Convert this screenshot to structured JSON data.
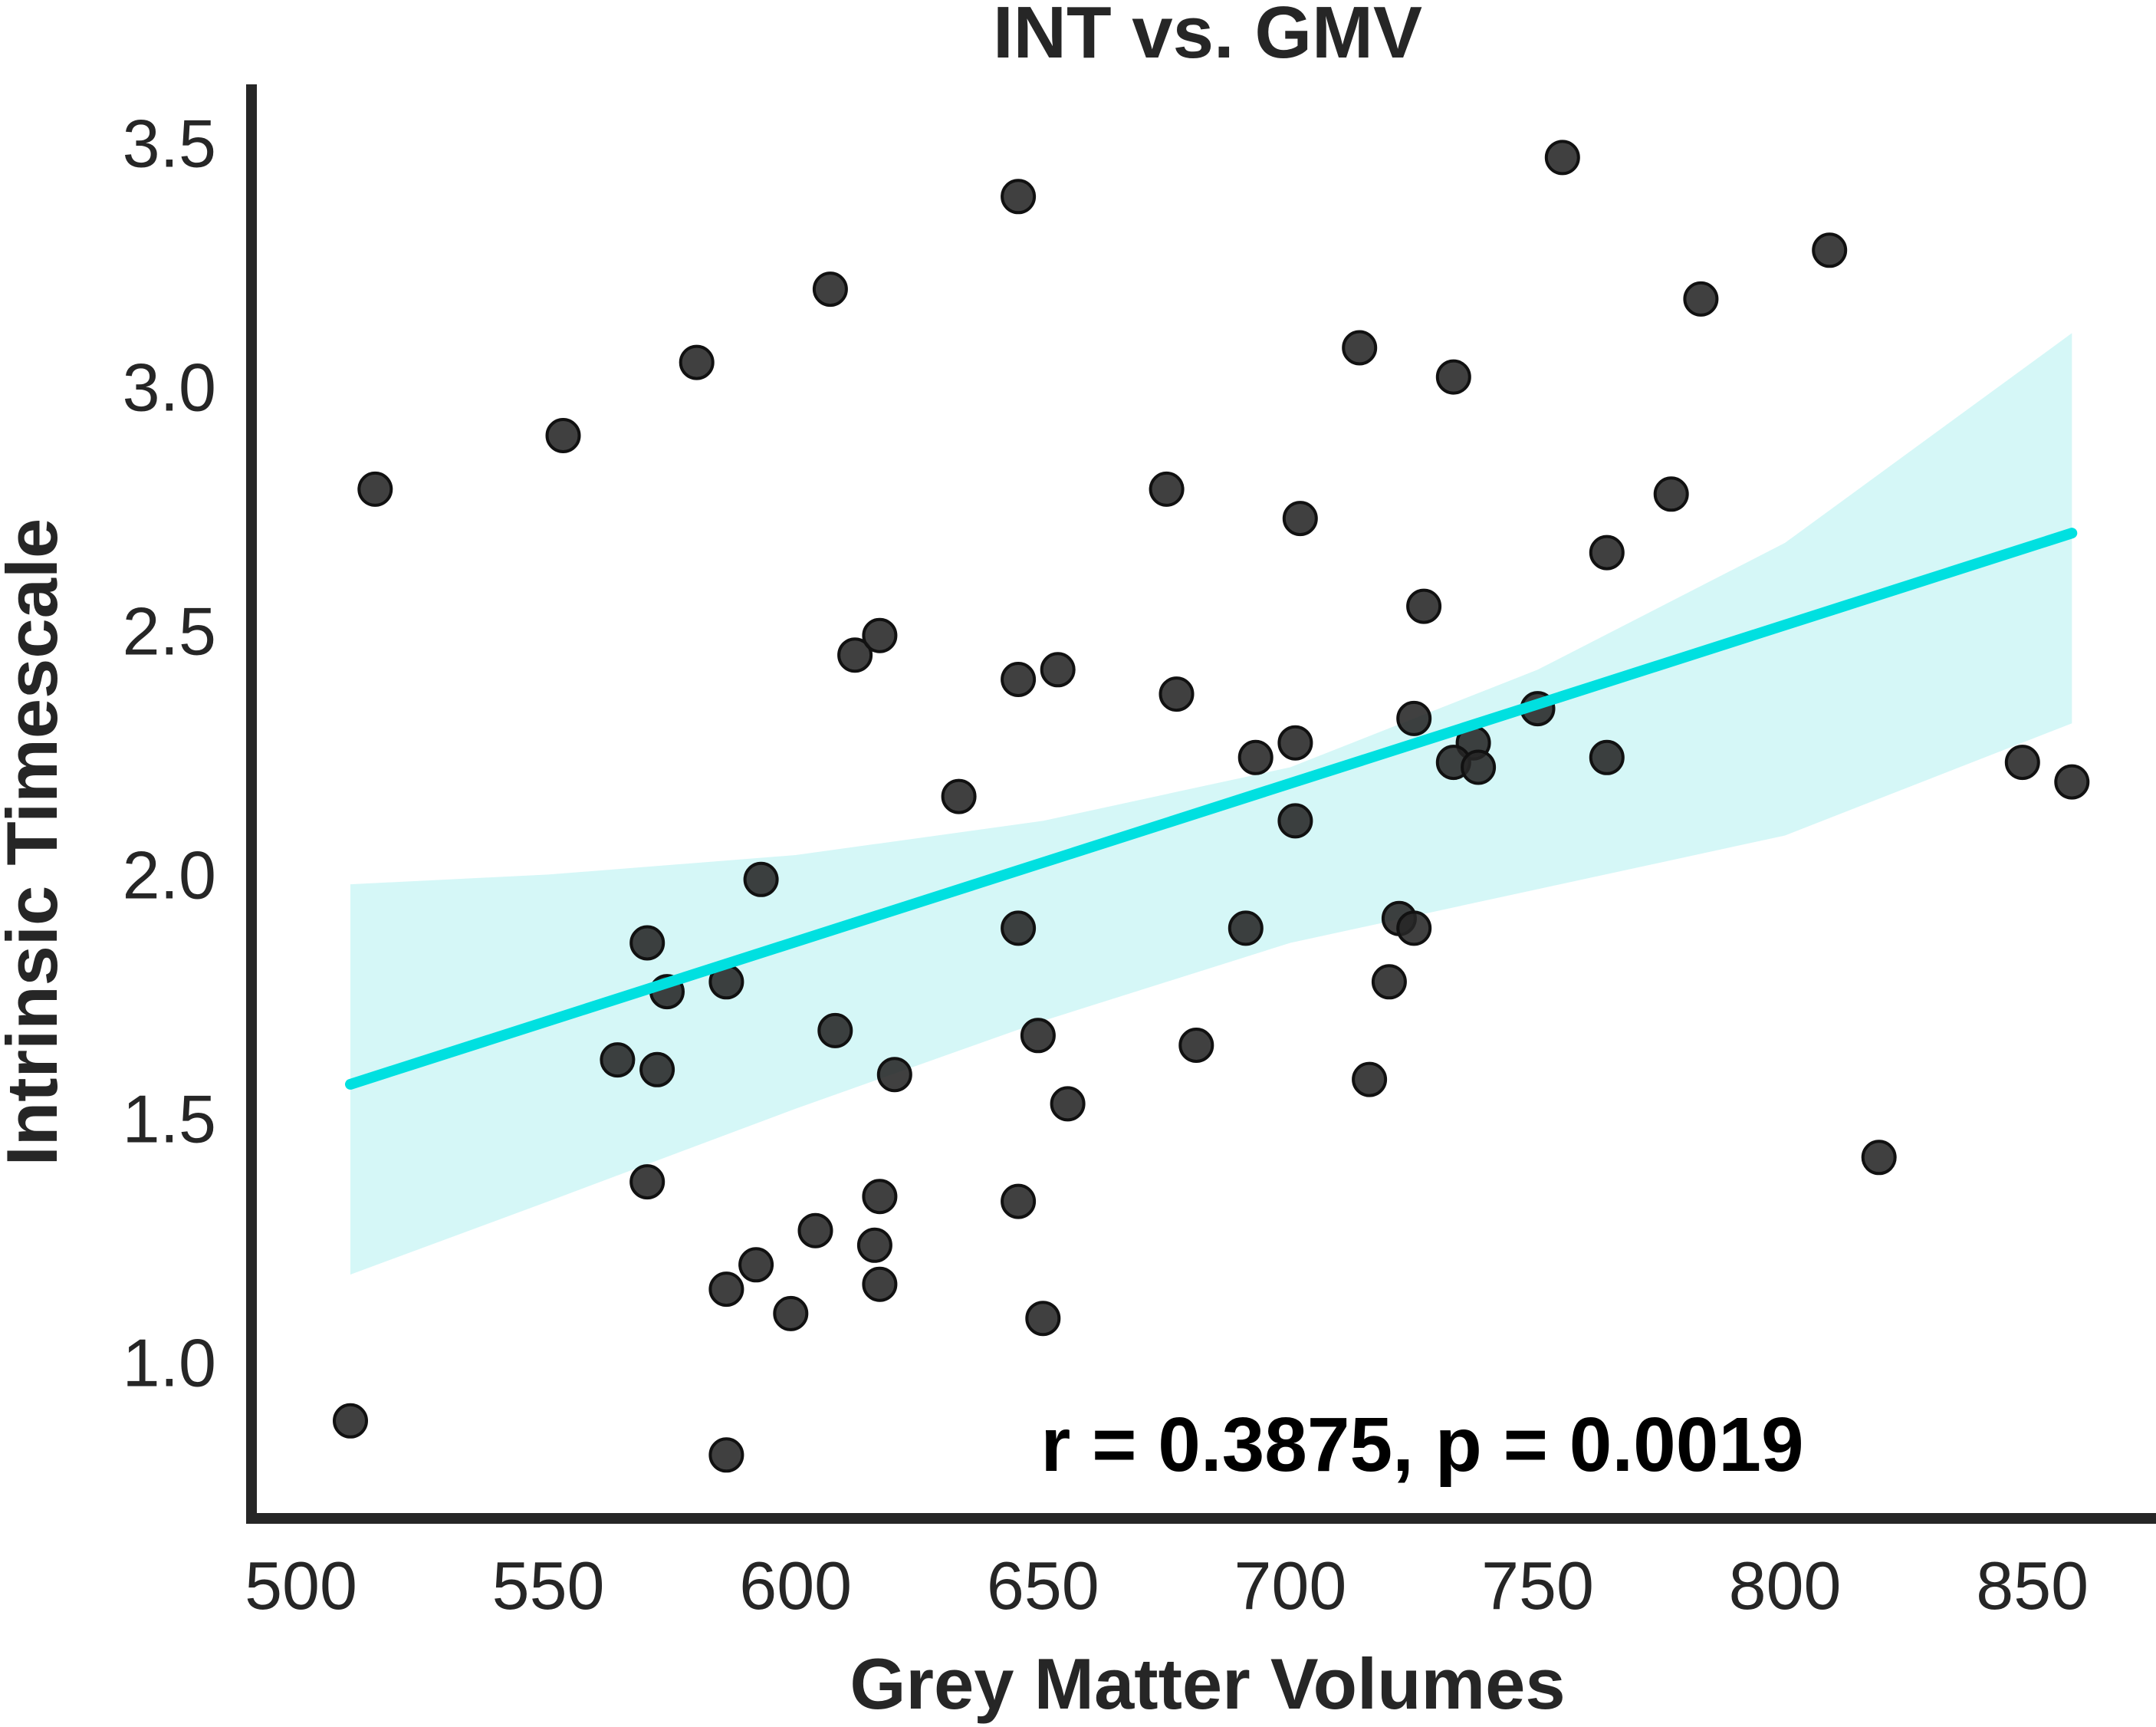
{
  "chart_data": {
    "type": "scatter",
    "title": "INT vs. GMV",
    "xlabel": "Grey Matter Volumes",
    "ylabel": "Intrinsic Timescale",
    "xlim": [
      490,
      875
    ],
    "ylim": [
      0.68,
      3.62
    ],
    "xticks": [
      500,
      550,
      600,
      650,
      700,
      750,
      800,
      850
    ],
    "xtick_labels": [
      "500",
      "550",
      "600",
      "650",
      "700",
      "750",
      "800",
      "850"
    ],
    "yticks": [
      1.0,
      1.5,
      2.0,
      2.5,
      3.0,
      3.5
    ],
    "ytick_labels": [
      "1.0",
      "1.5",
      "2.0",
      "2.5",
      "3.0",
      "3.5"
    ],
    "grid": false,
    "annotation": "r = 0.3875, p = 0.0019",
    "colors": {
      "points": "#262626",
      "fit_line": "#00e0e0",
      "confidence_band": "#d5f7f7",
      "axes": "#262626"
    },
    "points": [
      {
        "x": 510,
        "y": 0.88
      },
      {
        "x": 515,
        "y": 2.79
      },
      {
        "x": 553,
        "y": 2.9
      },
      {
        "x": 580,
        "y": 3.05
      },
      {
        "x": 607,
        "y": 3.2
      },
      {
        "x": 645,
        "y": 3.39
      },
      {
        "x": 755,
        "y": 3.47
      },
      {
        "x": 809,
        "y": 3.28
      },
      {
        "x": 783,
        "y": 3.18
      },
      {
        "x": 714,
        "y": 3.08
      },
      {
        "x": 733,
        "y": 3.02
      },
      {
        "x": 675,
        "y": 2.79
      },
      {
        "x": 777,
        "y": 2.78
      },
      {
        "x": 702,
        "y": 2.73
      },
      {
        "x": 764,
        "y": 2.66
      },
      {
        "x": 727,
        "y": 2.55
      },
      {
        "x": 612,
        "y": 2.45
      },
      {
        "x": 617,
        "y": 2.49
      },
      {
        "x": 645,
        "y": 2.4
      },
      {
        "x": 653,
        "y": 2.42
      },
      {
        "x": 677,
        "y": 2.37
      },
      {
        "x": 750,
        "y": 2.34
      },
      {
        "x": 725,
        "y": 2.32
      },
      {
        "x": 701,
        "y": 2.27
      },
      {
        "x": 737,
        "y": 2.27
      },
      {
        "x": 693,
        "y": 2.24
      },
      {
        "x": 733,
        "y": 2.23
      },
      {
        "x": 738,
        "y": 2.22
      },
      {
        "x": 764,
        "y": 2.24
      },
      {
        "x": 848,
        "y": 2.23
      },
      {
        "x": 858,
        "y": 2.19
      },
      {
        "x": 633,
        "y": 2.16
      },
      {
        "x": 701,
        "y": 2.11
      },
      {
        "x": 593,
        "y": 1.99
      },
      {
        "x": 570,
        "y": 1.86
      },
      {
        "x": 645,
        "y": 1.89
      },
      {
        "x": 691,
        "y": 1.89
      },
      {
        "x": 722,
        "y": 1.91
      },
      {
        "x": 725,
        "y": 1.89
      },
      {
        "x": 586,
        "y": 1.78
      },
      {
        "x": 574,
        "y": 1.76
      },
      {
        "x": 720,
        "y": 1.78
      },
      {
        "x": 608,
        "y": 1.68
      },
      {
        "x": 649,
        "y": 1.67
      },
      {
        "x": 681,
        "y": 1.65
      },
      {
        "x": 564,
        "y": 1.62
      },
      {
        "x": 572,
        "y": 1.6
      },
      {
        "x": 620,
        "y": 1.59
      },
      {
        "x": 716,
        "y": 1.58
      },
      {
        "x": 655,
        "y": 1.53
      },
      {
        "x": 819,
        "y": 1.42
      },
      {
        "x": 570,
        "y": 1.37
      },
      {
        "x": 617,
        "y": 1.34
      },
      {
        "x": 645,
        "y": 1.33
      },
      {
        "x": 604,
        "y": 1.27
      },
      {
        "x": 616,
        "y": 1.24
      },
      {
        "x": 592,
        "y": 1.2
      },
      {
        "x": 617,
        "y": 1.16
      },
      {
        "x": 586,
        "y": 1.15
      },
      {
        "x": 599,
        "y": 1.1
      },
      {
        "x": 650,
        "y": 1.09
      },
      {
        "x": 586,
        "y": 0.81
      }
    ],
    "fit_line": [
      {
        "x": 510,
        "y": 1.57
      },
      {
        "x": 858,
        "y": 2.7
      }
    ],
    "confidence_band": [
      {
        "x": 510,
        "lower": 1.18,
        "upper": 1.98
      },
      {
        "x": 550,
        "lower": 1.33,
        "upper": 2.0
      },
      {
        "x": 600,
        "lower": 1.52,
        "upper": 2.04
      },
      {
        "x": 650,
        "lower": 1.7,
        "upper": 2.11
      },
      {
        "x": 700,
        "lower": 1.86,
        "upper": 2.22
      },
      {
        "x": 750,
        "lower": 1.97,
        "upper": 2.42
      },
      {
        "x": 800,
        "lower": 2.08,
        "upper": 2.68
      },
      {
        "x": 858,
        "lower": 2.31,
        "upper": 3.11
      }
    ]
  }
}
